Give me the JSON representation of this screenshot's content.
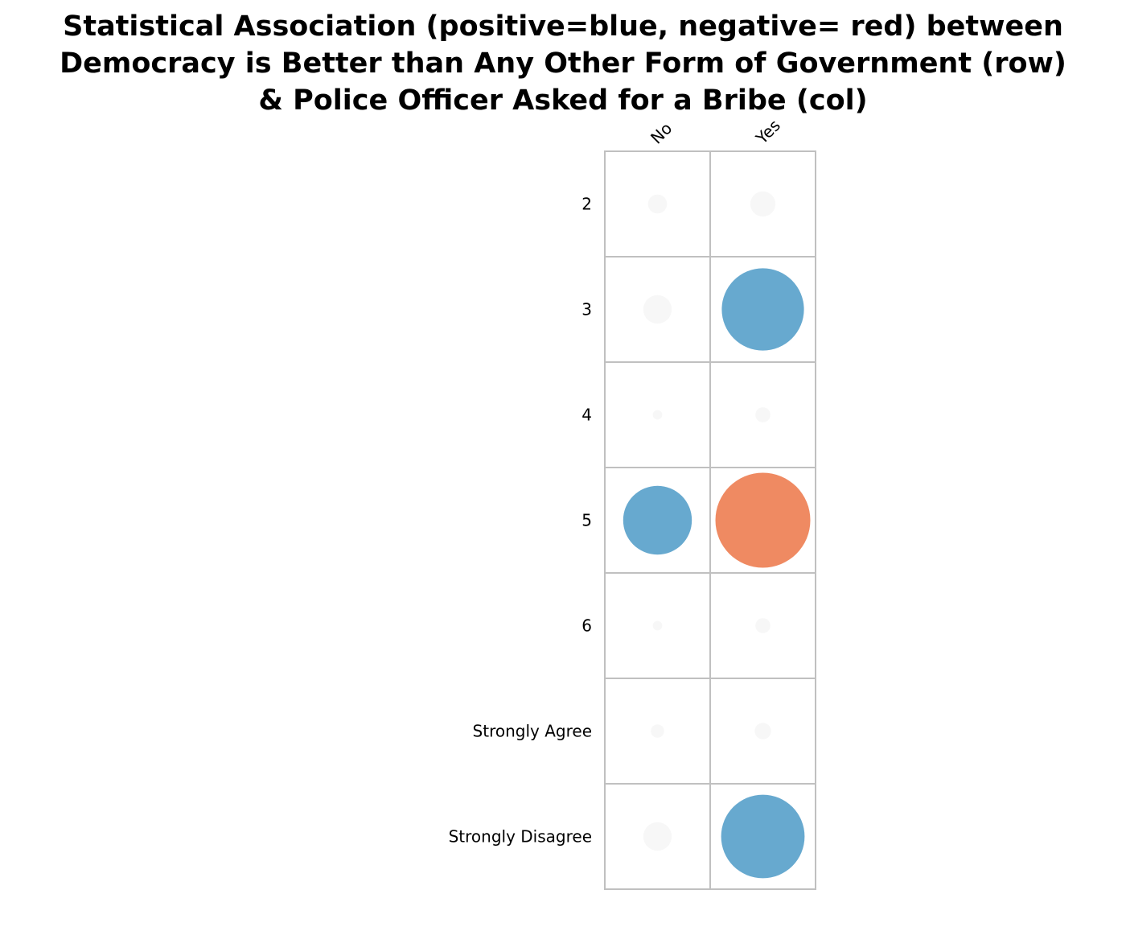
{
  "chart_data": {
    "type": "heatmap",
    "title": "Statistical Association (positive=blue, negative= red) between Democracy is Better than Any Other Form of Government (row) & Police Officer Asked for a Bribe (col)",
    "title_lines": [
      "Statistical Association (positive=blue, negative= red) between",
      "Democracy is Better than Any Other Form of Government (row)",
      "& Police Officer Asked for a Bribe (col)"
    ],
    "columns": [
      "No",
      "Yes"
    ],
    "rows": [
      "2",
      "3",
      "4",
      "5",
      "6",
      "Strongly Agree",
      "Strongly Disagree"
    ],
    "values": [
      [
        0.08,
        0.14
      ],
      [
        0.18,
        1.5
      ],
      [
        0.02,
        0.05
      ],
      [
        1.05,
        -2.0
      ],
      [
        0.02,
        0.05
      ],
      [
        0.04,
        0.06
      ],
      [
        0.18,
        1.55
      ]
    ],
    "colors": {
      "positive": "#67a9cf",
      "negative": "#ef8a62",
      "neutral": "#f7f7f7",
      "grid": "#c0c0c0"
    },
    "legend": "none"
  }
}
